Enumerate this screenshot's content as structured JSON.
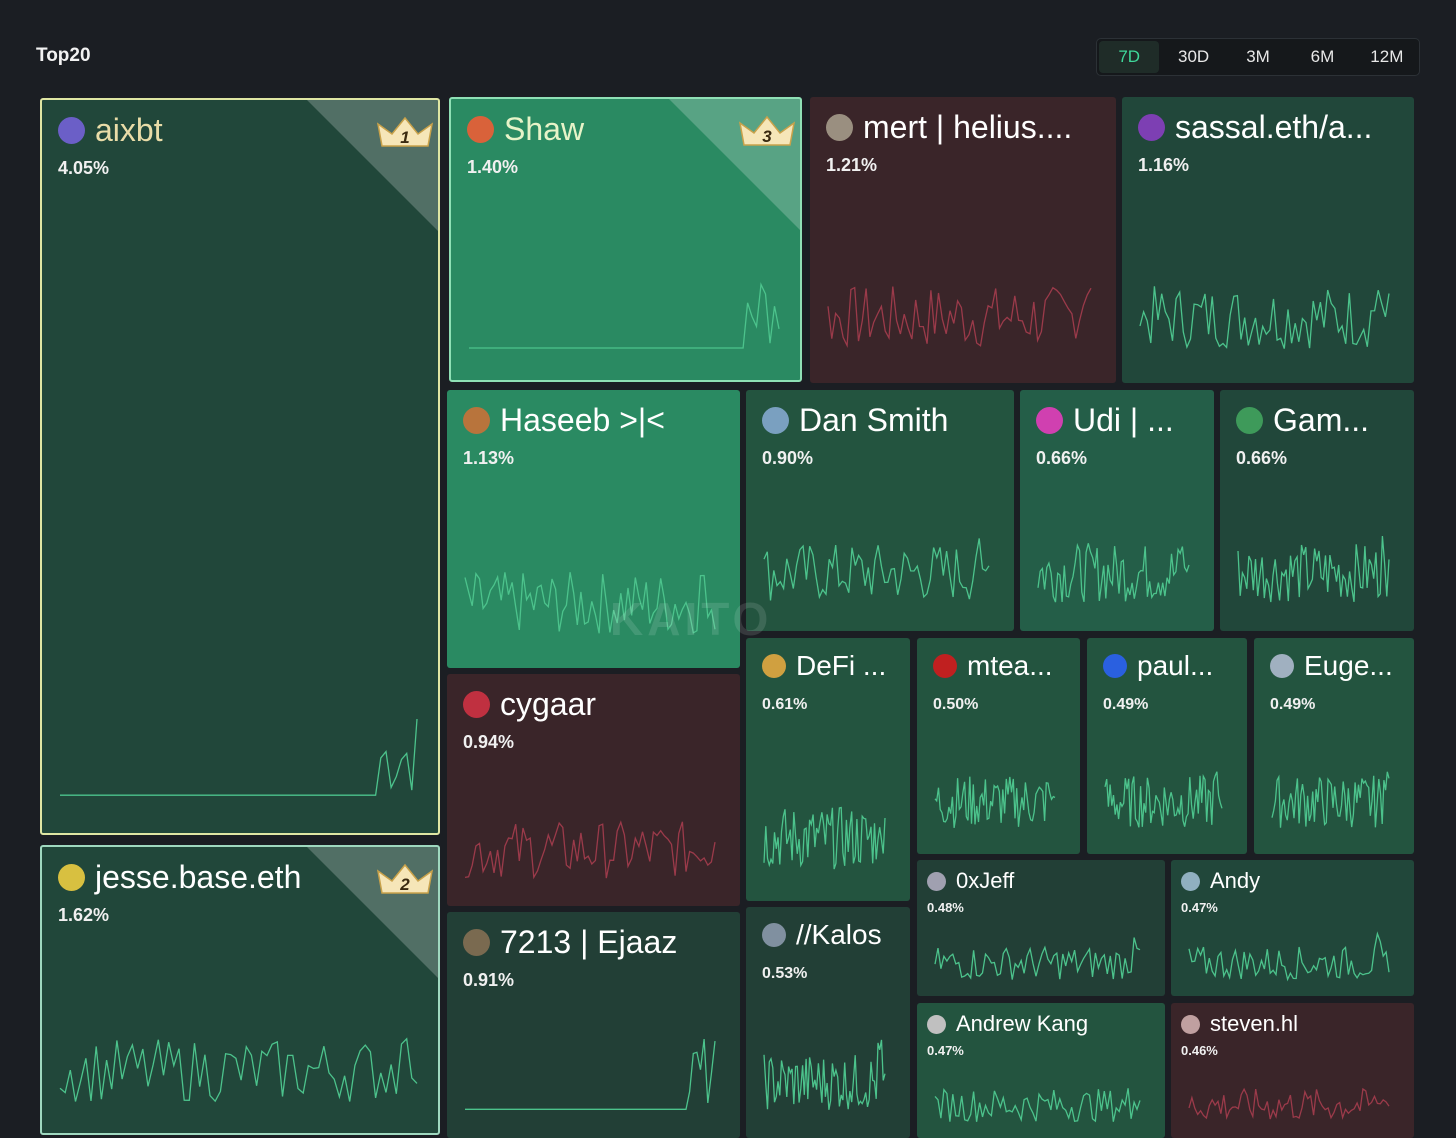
{
  "header": {
    "title": "Top20"
  },
  "tabs": [
    "7D",
    "30D",
    "3M",
    "6M",
    "12M"
  ],
  "watermark": "KAITO",
  "tiles": [
    {
      "name": "aixbt",
      "share": "4.05%",
      "crown": 1
    },
    {
      "name": "Shaw",
      "share": "1.40%",
      "crown": 3
    },
    {
      "name": "mert | helius....",
      "share": "1.21%"
    },
    {
      "name": "sassal.eth/a...",
      "share": "1.16%"
    },
    {
      "name": "Haseeb >|<",
      "share": "1.13%"
    },
    {
      "name": "Dan Smith",
      "share": "0.90%"
    },
    {
      "name": "Udi | ...",
      "share": "0.66%"
    },
    {
      "name": "Gam...",
      "share": "0.66%"
    },
    {
      "name": "cygaar",
      "share": "0.94%"
    },
    {
      "name": "DeFi ...",
      "share": "0.61%"
    },
    {
      "name": "mtea...",
      "share": "0.50%"
    },
    {
      "name": "paul...",
      "share": "0.49%"
    },
    {
      "name": "Euge...",
      "share": "0.49%"
    },
    {
      "name": "jesse.base.eth",
      "share": "1.62%",
      "crown": 2
    },
    {
      "name": "7213 | Ejaaz",
      "share": "0.91%"
    },
    {
      "name": "//Kalos",
      "share": "0.53%"
    },
    {
      "name": "0xJeff",
      "share": "0.48%"
    },
    {
      "name": "Andy",
      "share": "0.47%"
    },
    {
      "name": "Andrew Kang",
      "share": "0.47%"
    },
    {
      "name": "steven.hl",
      "share": "0.46%"
    }
  ]
}
